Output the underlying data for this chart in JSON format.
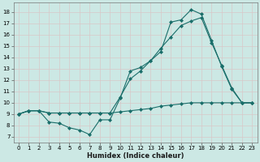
{
  "xlabel": "Humidex (Indice chaleur)",
  "bg_color": "#cce8e4",
  "grid_color": "#b8d8d4",
  "line_color": "#1a6e6a",
  "xlim": [
    -0.5,
    23.5
  ],
  "ylim": [
    6.5,
    18.8
  ],
  "yticks": [
    7,
    8,
    9,
    10,
    11,
    12,
    13,
    14,
    15,
    16,
    17,
    18
  ],
  "xticks": [
    0,
    1,
    2,
    3,
    4,
    5,
    6,
    7,
    8,
    9,
    10,
    11,
    12,
    13,
    14,
    15,
    16,
    17,
    18,
    19,
    20,
    21,
    22,
    23
  ],
  "curve_bottom_x": [
    0,
    1,
    2,
    3,
    4,
    5,
    6,
    7,
    8,
    9,
    10,
    11,
    12,
    13,
    14,
    15,
    16,
    17,
    18,
    19,
    20,
    21,
    22,
    23
  ],
  "curve_bottom_y": [
    9.0,
    9.3,
    9.3,
    9.1,
    9.1,
    9.1,
    9.1,
    9.1,
    9.1,
    9.1,
    9.2,
    9.3,
    9.4,
    9.5,
    9.7,
    9.8,
    9.9,
    10.0,
    10.0,
    10.0,
    10.0,
    10.0,
    10.0,
    10.0
  ],
  "curve_mid_x": [
    0,
    1,
    2,
    3,
    4,
    5,
    6,
    7,
    8,
    9,
    10,
    11,
    12,
    13,
    14,
    15,
    16,
    17,
    18,
    19,
    20,
    21,
    22,
    23
  ],
  "curve_mid_y": [
    9.0,
    9.3,
    9.3,
    9.1,
    9.1,
    9.1,
    9.1,
    9.1,
    9.1,
    9.1,
    10.5,
    12.1,
    12.8,
    13.7,
    14.8,
    15.8,
    16.8,
    17.2,
    17.5,
    15.3,
    13.3,
    11.3,
    10.0,
    10.0
  ],
  "curve_top_x": [
    0,
    1,
    2,
    3,
    4,
    5,
    6,
    7,
    8,
    9,
    10,
    11,
    12,
    13,
    14,
    15,
    16,
    17,
    18,
    19,
    20,
    21,
    22,
    23
  ],
  "curve_top_y": [
    9.0,
    9.3,
    9.3,
    8.3,
    8.2,
    7.8,
    7.6,
    7.2,
    8.5,
    8.5,
    10.4,
    12.8,
    13.1,
    13.7,
    14.5,
    17.1,
    17.3,
    18.2,
    17.8,
    15.5,
    13.2,
    11.2,
    10.0,
    10.0
  ]
}
